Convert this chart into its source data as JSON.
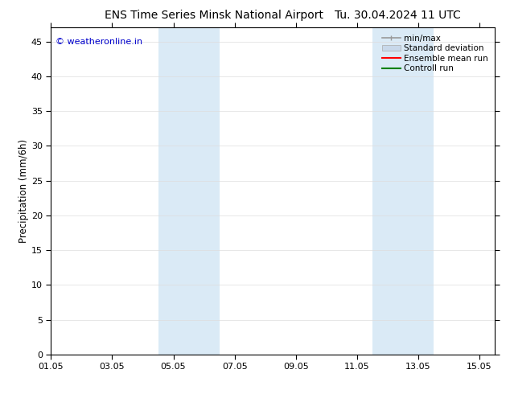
{
  "title": "ENS Time Series Minsk National Airport",
  "title2": "Tu. 30.04.2024 11 UTC",
  "ylabel": "Precipitation (mm/6h)",
  "xlim_start": 0,
  "xlim_end": 14.5,
  "ylim": [
    0,
    47
  ],
  "yticks": [
    0,
    5,
    10,
    15,
    20,
    25,
    30,
    35,
    40,
    45
  ],
  "xtick_labels": [
    "01.05",
    "03.05",
    "05.05",
    "07.05",
    "09.05",
    "11.05",
    "13.05",
    "15.05"
  ],
  "xtick_positions": [
    0,
    2,
    4,
    6,
    8,
    10,
    12,
    14
  ],
  "shaded_bands": [
    {
      "xmin": 3.5,
      "xmax": 5.5
    },
    {
      "xmin": 10.5,
      "xmax": 12.5
    }
  ],
  "shade_color": "#daeaf6",
  "watermark": "© weatheronline.in",
  "watermark_color": "#0000cc",
  "legend_items": [
    {
      "label": "min/max",
      "color": "#999999",
      "lw": 1.2,
      "style": "minmax"
    },
    {
      "label": "Standard deviation",
      "color": "#c8d8ea",
      "lw": 6,
      "style": "band"
    },
    {
      "label": "Ensemble mean run",
      "color": "#ff0000",
      "lw": 1.5,
      "style": "line"
    },
    {
      "label": "Controll run",
      "color": "#008000",
      "lw": 1.5,
      "style": "line"
    }
  ],
  "bg_color": "#ffffff",
  "spine_color": "#000000",
  "grid_color": "#dddddd",
  "title_fontsize": 10,
  "axis_label_fontsize": 8.5,
  "tick_fontsize": 8,
  "legend_fontsize": 7.5
}
